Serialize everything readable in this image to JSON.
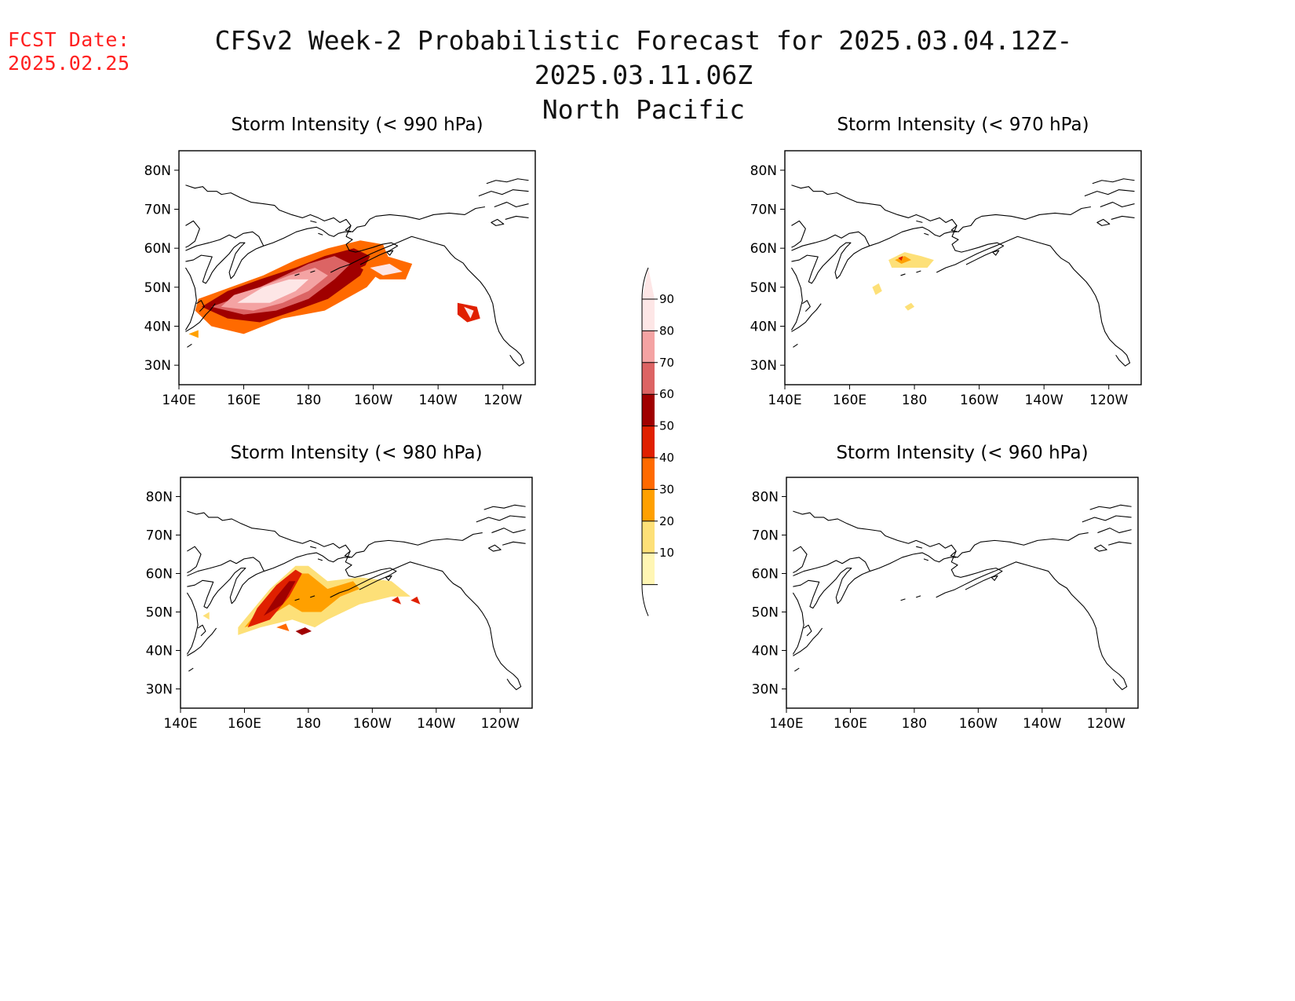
{
  "fcst": {
    "label": "FCST Date:",
    "date": "2025.02.25"
  },
  "title": {
    "line1": "CFSv2 Week-2 Probabilistic Forecast for 2025.03.04.12Z-2025.03.11.06Z",
    "line2": "North Pacific"
  },
  "lon_labels": [
    "140E",
    "160E",
    "180",
    "160W",
    "140W",
    "120W"
  ],
  "lat_labels": [
    "80N",
    "70N",
    "60N",
    "50N",
    "40N",
    "30N"
  ],
  "panels": [
    {
      "id": "p990",
      "title": "Storm Intensity (< 990 hPa)"
    },
    {
      "id": "p970",
      "title": "Storm Intensity (< 970 hPa)"
    },
    {
      "id": "p980",
      "title": "Storm Intensity (< 980 hPa)"
    },
    {
      "id": "p960",
      "title": "Storm Intensity (< 960 hPa)"
    }
  ],
  "colorbar": {
    "labels": [
      "90",
      "80",
      "70",
      "60",
      "50",
      "40",
      "30",
      "20",
      "10"
    ],
    "colors": [
      "#fde6e6",
      "#f4a3a3",
      "#dc6464",
      "#a00000",
      "#e02000",
      "#ff6a00",
      "#ffa000",
      "#fde078",
      "#fff6b4"
    ]
  },
  "map_extent": {
    "lon_min_east": 140,
    "lon_max_east": 250,
    "lat_min": 25,
    "lat_max": 85
  }
}
